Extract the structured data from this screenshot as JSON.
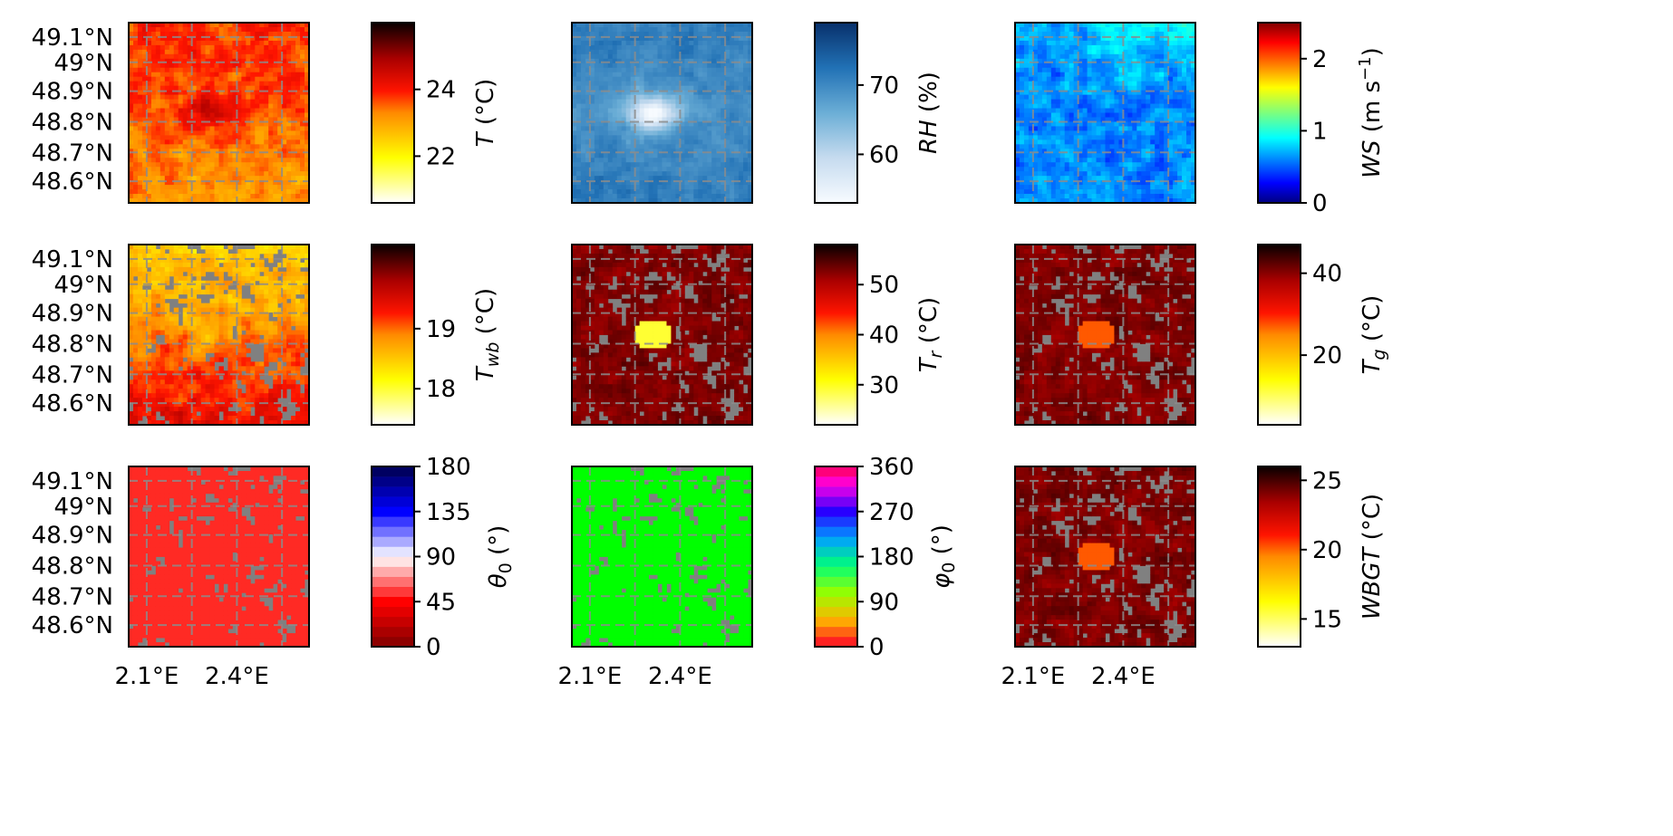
{
  "figure": {
    "lat_ticks": [
      "49.1°N",
      "49°N",
      "48.9°N",
      "48.8°N",
      "48.7°N",
      "48.6°N"
    ],
    "lon_ticks": [
      "2.1°E",
      "2.4°E"
    ]
  },
  "chart_data": [
    {
      "type": "heatmap",
      "variable": "T",
      "cbar_label": "T (°C)",
      "sym": "T",
      "sub": "",
      "unit": "(°C)",
      "cmap": "hot_r",
      "vmin": 20.6,
      "vmax": 26.0,
      "ticks": [
        22,
        24
      ],
      "map_style": "hot-continuous",
      "nodata_fraction": 0.0
    },
    {
      "type": "heatmap",
      "variable": "RH",
      "cbar_label": "RH (%)",
      "sym": "RH",
      "sub": "",
      "unit": "(%)",
      "cmap": "Blues",
      "vmin": 53,
      "vmax": 79,
      "ticks": [
        60,
        70
      ],
      "map_style": "blues",
      "nodata_fraction": 0.0
    },
    {
      "type": "heatmap",
      "variable": "WS",
      "cbar_label": "WS (m s-1)",
      "sym": "WS",
      "sub": "",
      "unit": "(m s",
      "unit_sup": "−1",
      "unit_end": ")",
      "cmap": "jet",
      "vmin": 0,
      "vmax": 2.5,
      "ticks": [
        0,
        1,
        2
      ],
      "map_style": "jet",
      "nodata_fraction": 0.0
    },
    {
      "type": "heatmap",
      "variable": "Twb",
      "cbar_label": "Twb (°C)",
      "sym": "T",
      "sub": "wb",
      "unit": "(°C)",
      "cmap": "hot_r",
      "vmin": 17.4,
      "vmax": 20.4,
      "ticks": [
        18,
        19
      ],
      "map_style": "hot-light",
      "nodata_fraction": 0.3
    },
    {
      "type": "heatmap",
      "variable": "Tr",
      "cbar_label": "Tr (°C)",
      "sym": "T",
      "sub": "r",
      "unit": "(°C)",
      "cmap": "hot_r",
      "vmin": 22,
      "vmax": 58,
      "ticks": [
        30,
        40,
        50
      ],
      "map_style": "hot-dark-urban",
      "nodata_fraction": 0.3
    },
    {
      "type": "heatmap",
      "variable": "Tg",
      "cbar_label": "Tg (°C)",
      "sym": "T",
      "sub": "g",
      "unit": "(°C)",
      "cmap": "hot_r",
      "vmin": 3,
      "vmax": 47,
      "ticks": [
        20,
        40
      ],
      "map_style": "hot-dark-urban",
      "nodata_fraction": 0.3
    },
    {
      "type": "heatmap",
      "variable": "theta0",
      "cbar_label": "θ0 (°)",
      "sym": "θ",
      "sub": "0",
      "unit": "(°)",
      "cmap": "seismic_r (discrete)",
      "vmin": 0,
      "vmax": 180,
      "ticks": [
        0,
        45,
        90,
        135,
        180
      ],
      "levels": 18,
      "map_style": "flat-red",
      "nodata_fraction": 0.2
    },
    {
      "type": "heatmap",
      "variable": "phi0",
      "cbar_label": "φ0 (°)",
      "sym": "φ",
      "sub": "0",
      "unit": "(°)",
      "cmap": "gist_rainbow (discrete)",
      "vmin": 0,
      "vmax": 360,
      "ticks": [
        0,
        90,
        180,
        270,
        360
      ],
      "levels": 18,
      "map_style": "flat-green",
      "nodata_fraction": 0.2
    },
    {
      "type": "heatmap",
      "variable": "WBGT",
      "cbar_label": "WBGT (°C)",
      "sym": "WBGT",
      "sub": "",
      "unit": "(°C)",
      "cmap": "hot_r",
      "vmin": 13,
      "vmax": 26,
      "ticks": [
        15,
        20,
        25
      ],
      "map_style": "hot-dark-urban",
      "nodata_fraction": 0.3
    }
  ]
}
